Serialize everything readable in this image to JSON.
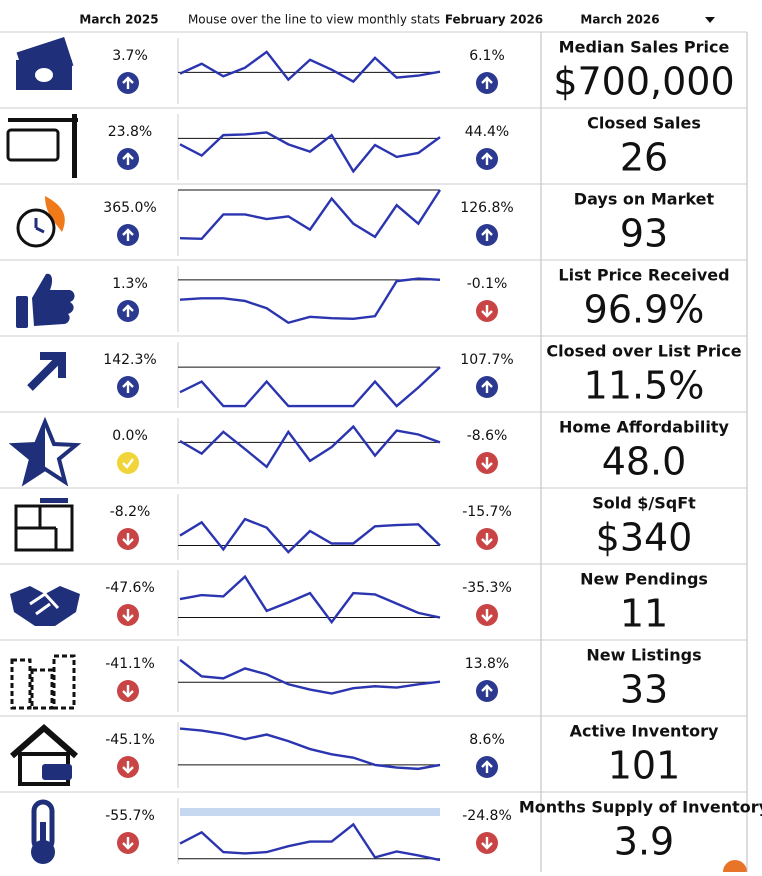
{
  "header": {
    "col_prev": "March 2025",
    "instructions": "Mouse over the line to view monthly stats",
    "col_last": "February 2026",
    "period": "March 2026"
  },
  "rows": [
    {
      "label": "Median Sales Price",
      "value": "$700,000",
      "prev_change": "3.7%",
      "prev_dir": "up",
      "last_change": "6.1%",
      "last_dir": "up",
      "spark": [
        46,
        61,
        42,
        55,
        79,
        37,
        67,
        52,
        34,
        70,
        40,
        43,
        49
      ],
      "reference": 48
    },
    {
      "label": "Closed Sales",
      "value": "26",
      "prev_change": "23.8%",
      "prev_dir": "up",
      "last_change": "44.4%",
      "last_dir": "up",
      "spark": [
        54,
        37,
        68,
        69,
        72,
        54,
        43,
        68,
        13,
        53,
        35,
        41,
        65
      ],
      "reference": 63
    },
    {
      "label": "Days on Market",
      "value": "93",
      "prev_change": "365.0%",
      "prev_dir": "up",
      "last_change": "126.8%",
      "last_dir": "up",
      "spark": [
        27,
        26,
        63,
        63,
        56,
        60,
        40,
        87,
        49,
        29,
        77,
        49,
        100
      ],
      "reference": 100
    },
    {
      "label": "List Price Received",
      "value": "96.9%",
      "prev_change": "1.3%",
      "prev_dir": "up",
      "last_change": "-0.1%",
      "last_dir": "down",
      "spark": [
        49,
        51,
        51,
        47,
        36,
        14,
        23,
        21,
        20,
        24,
        77,
        81,
        79
      ],
      "reference": 79
    },
    {
      "label": "Closed over List Price",
      "value": "11.5%",
      "prev_change": "142.3%",
      "prev_dir": "up",
      "last_change": "107.7%",
      "last_dir": "up",
      "spark": [
        24,
        40,
        3,
        3,
        40,
        3,
        3,
        3,
        3,
        40,
        3,
        31,
        62
      ],
      "reference": 62
    },
    {
      "label": "Home Affordability",
      "value": "48.0",
      "prev_change": "0.0%",
      "prev_dir": "flat",
      "last_change": "-8.6%",
      "last_dir": "down",
      "spark": [
        65,
        46,
        79,
        53,
        26,
        79,
        35,
        56,
        87,
        43,
        81,
        75,
        63
      ],
      "reference": 63
    },
    {
      "label": "Sold $/SqFt",
      "value": "$340",
      "prev_change": "-8.2%",
      "prev_dir": "down",
      "last_change": "-15.7%",
      "last_dir": "down",
      "spark": [
        37,
        57,
        16,
        62,
        49,
        12,
        44,
        25,
        25,
        51,
        53,
        54,
        22
      ],
      "reference": 22
    },
    {
      "label": "New Pendings",
      "value": "11",
      "prev_change": "-47.6%",
      "prev_dir": "down",
      "last_change": "-35.3%",
      "last_dir": "down",
      "spark": [
        56,
        62,
        60,
        90,
        38,
        51,
        65,
        21,
        65,
        63,
        49,
        35,
        28
      ],
      "reference": 28
    },
    {
      "label": "New Listings",
      "value": "33",
      "prev_change": "-41.1%",
      "prev_dir": "down",
      "last_change": "13.8%",
      "last_dir": "up",
      "spark": [
        79,
        54,
        51,
        66,
        57,
        42,
        34,
        28,
        36,
        39,
        37,
        42,
        46
      ],
      "reference": 45
    },
    {
      "label": "Active Inventory",
      "value": "101",
      "prev_change": "-45.1%",
      "prev_dir": "down",
      "last_change": "8.6%",
      "last_dir": "up",
      "spark": [
        90,
        87,
        82,
        74,
        81,
        71,
        59,
        51,
        46,
        35,
        31,
        29,
        35
      ],
      "reference": 35
    },
    {
      "label": "Months Supply of Inventory",
      "value": "3.9",
      "prev_change": "-55.7%",
      "prev_dir": "down",
      "last_change": "-24.8%",
      "last_dir": "down",
      "spark": [
        31,
        48,
        18,
        16,
        18,
        27,
        34,
        34,
        60,
        10,
        19,
        13,
        6
      ],
      "reference": 8
    }
  ]
}
